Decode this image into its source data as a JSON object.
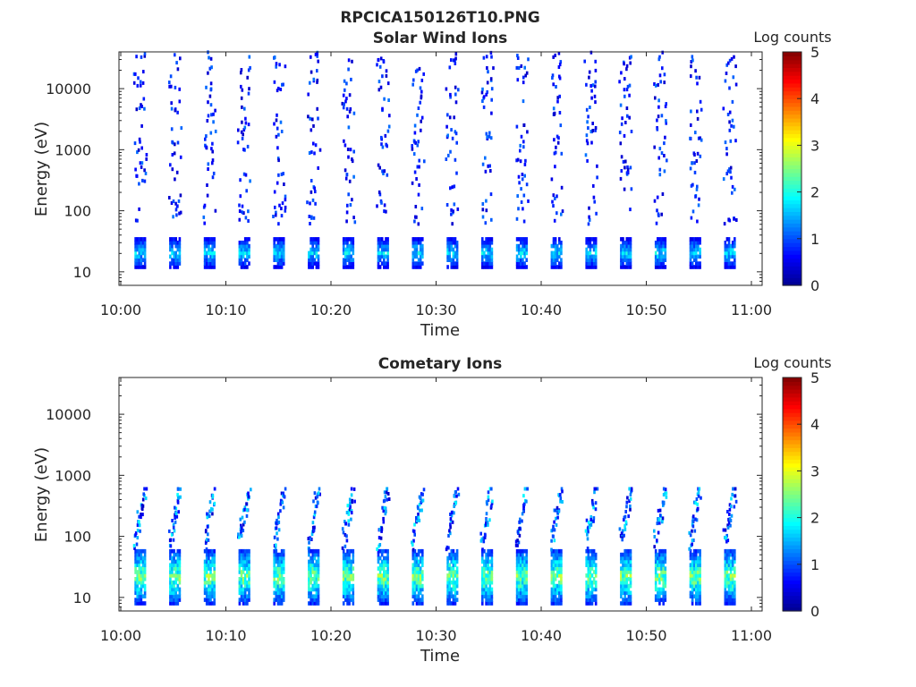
{
  "figure_title": "RPCICA150126T10.PNG",
  "colormap": [
    "#00008f",
    "#0000ff",
    "#0080ff",
    "#00ffff",
    "#80ff80",
    "#ffff00",
    "#ff8000",
    "#ff0000",
    "#800000"
  ],
  "chart_data": [
    {
      "type": "heatmap",
      "title": "Solar Wind Ions",
      "xlabel": "Time",
      "ylabel": "Energy (eV)",
      "x_ticks": [
        "10:00",
        "10:10",
        "10:20",
        "10:30",
        "10:40",
        "10:50",
        "11:00"
      ],
      "y_ticks": [
        "10",
        "100",
        "1000",
        "10000"
      ],
      "y_scale": "log",
      "ylim": [
        6,
        40000
      ],
      "colorbar": {
        "label": "Log counts",
        "ticks": [
          "0",
          "1",
          "2",
          "3",
          "4",
          "5"
        ],
        "range": [
          0,
          5
        ]
      },
      "sweep_start_minutes": [
        1.3,
        4.6,
        7.9,
        11.2,
        14.5,
        17.8,
        21.1,
        24.4,
        27.7,
        31.0,
        34.3,
        37.6,
        40.9,
        44.2,
        47.5,
        50.8,
        54.1,
        57.4
      ],
      "dense_band": {
        "energy_eV": [
          12,
          35
        ],
        "peak_log_counts": 2.1
      },
      "sparse_range_eV": [
        60,
        40000
      ]
    },
    {
      "type": "heatmap",
      "title": "Cometary Ions",
      "xlabel": "Time",
      "ylabel": "Energy (eV)",
      "x_ticks": [
        "10:00",
        "10:10",
        "10:20",
        "10:30",
        "10:40",
        "10:50",
        "11:00"
      ],
      "y_ticks": [
        "10",
        "100",
        "1000",
        "10000"
      ],
      "y_scale": "log",
      "ylim": [
        6,
        40000
      ],
      "colorbar": {
        "label": "Log counts",
        "ticks": [
          "0",
          "1",
          "2",
          "3",
          "4",
          "5"
        ],
        "range": [
          0,
          5
        ]
      },
      "sweep_start_minutes": [
        1.3,
        4.6,
        7.9,
        11.2,
        14.5,
        17.8,
        21.1,
        24.4,
        27.7,
        31.0,
        34.3,
        37.6,
        40.9,
        44.2,
        47.5,
        50.8,
        54.1,
        57.4
      ],
      "dense_band": {
        "energy_eV": [
          8,
          60
        ],
        "peak_log_counts": 3.0
      },
      "sparse_range_eV": [
        60,
        600
      ]
    }
  ]
}
